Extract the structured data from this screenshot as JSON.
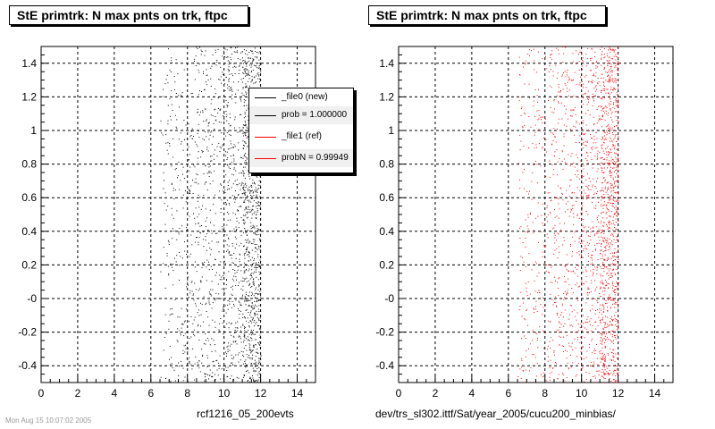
{
  "left_panel": {
    "title": "StE primtrk: N max pnts on trk, ftpc",
    "xlabel": "rcf1216_05_200evts",
    "legend": [
      {
        "label": "_file0 (new)",
        "color": "#000000"
      },
      {
        "label": "prob = 1.000000",
        "color": "#000000"
      },
      {
        "label": "_file1 (ref)",
        "color": "#ff0000"
      },
      {
        "label": "probN = 0.99949",
        "color": "#ff0000"
      }
    ]
  },
  "right_panel": {
    "title": "StE primtrk: N max pnts on trk, ftpc",
    "xlabel": "dev/trs_sl302.ittf/Sat/year_2005/cucu200_minbias/"
  },
  "footer": "Mon Aug 15 10:07:02 2005",
  "chart_data": [
    {
      "type": "scatter",
      "title": "StE primtrk: N max pnts on trk, ftpc",
      "xlabel": "rcf1216_05_200evts",
      "ylabel": "",
      "xlim": [
        0,
        15
      ],
      "ylim": [
        -0.5,
        1.5
      ],
      "xticks": [
        0,
        2,
        4,
        6,
        8,
        10,
        12,
        14
      ],
      "yticks": [
        "-0.4",
        "-0.2",
        "-0",
        "0.2",
        "0.4",
        "0.6",
        "0.8",
        "1",
        "1.2",
        "1.4"
      ],
      "grid": true,
      "color": "#000000",
      "density": [
        {
          "x_range": [
            6.5,
            8
          ],
          "relative_density": 0.15
        },
        {
          "x_range": [
            8,
            10
          ],
          "relative_density": 0.25
        },
        {
          "x_range": [
            10,
            11
          ],
          "relative_density": 0.4
        },
        {
          "x_range": [
            11,
            12
          ],
          "relative_density": 1.0
        }
      ]
    },
    {
      "type": "scatter",
      "title": "StE primtrk: N max pnts on trk, ftpc",
      "xlabel": "dev/trs_sl302.ittf/Sat/year_2005/cucu200_minbias/",
      "ylabel": "",
      "xlim": [
        0,
        15
      ],
      "ylim": [
        -0.5,
        1.5
      ],
      "xticks": [
        0,
        2,
        4,
        6,
        8,
        10,
        12,
        14
      ],
      "yticks": [
        "-0.4",
        "-0.2",
        "-0",
        "0.2",
        "0.4",
        "0.6",
        "0.8",
        "1",
        "1.2",
        "1.4"
      ],
      "grid": true,
      "color": "#ff0000",
      "density": [
        {
          "x_range": [
            6.5,
            8
          ],
          "relative_density": 0.15
        },
        {
          "x_range": [
            8,
            10
          ],
          "relative_density": 0.25
        },
        {
          "x_range": [
            10,
            11
          ],
          "relative_density": 0.4
        },
        {
          "x_range": [
            11,
            12
          ],
          "relative_density": 1.0
        }
      ]
    }
  ]
}
